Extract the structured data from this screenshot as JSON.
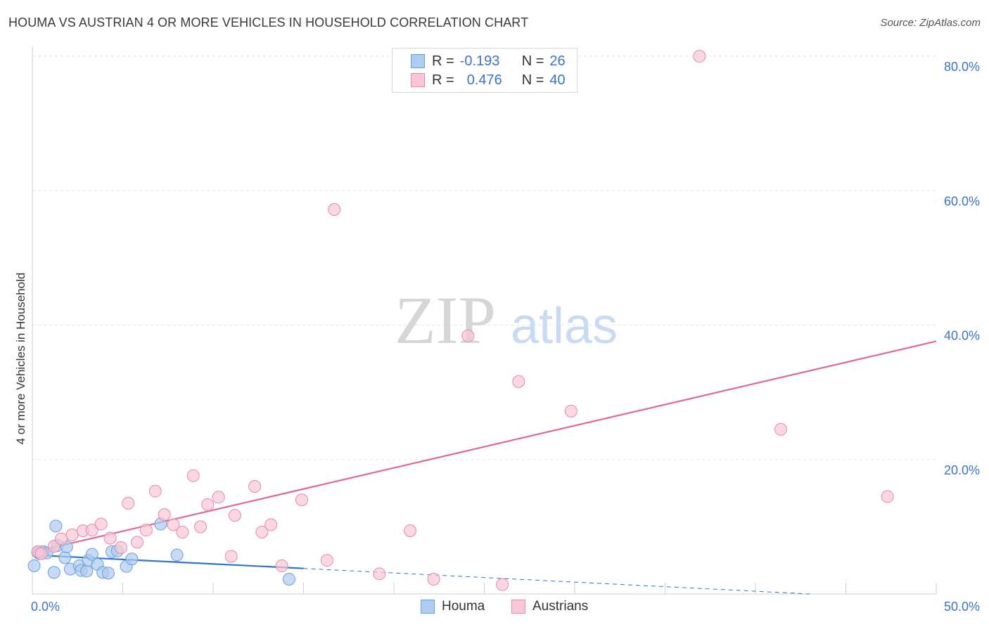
{
  "title": "HOUMA VS AUSTRIAN 4 OR MORE VEHICLES IN HOUSEHOLD CORRELATION CHART",
  "source": "Source: ZipAtlas.com",
  "watermark": {
    "zip": "ZIP",
    "atlas": "atlas"
  },
  "legend": {
    "rows": [
      {
        "r_label": "R =",
        "r_value": "-0.193",
        "n_label": "N =",
        "n_value": "26",
        "color": "#aecbf0",
        "border": "#6a9fd8"
      },
      {
        "r_label": "R =",
        "r_value": "0.476",
        "n_label": "N =",
        "n_value": "40",
        "color": "#f9c6d5",
        "border": "#e68aa6"
      }
    ]
  },
  "bottom_legend": [
    {
      "label": "Houma",
      "color": "#aecbf0",
      "border": "#6a9fd8"
    },
    {
      "label": "Austrians",
      "color": "#f9c6d5",
      "border": "#e68aa6"
    }
  ],
  "chart_data": {
    "type": "scatter",
    "title": "HOUMA VS AUSTRIAN 4 OR MORE VEHICLES IN HOUSEHOLD CORRELATION CHART",
    "xlabel": "",
    "ylabel": "4 or more Vehicles in Household",
    "xlim": [
      0,
      50
    ],
    "ylim": [
      0,
      80
    ],
    "x_tick_labels": [
      "0.0%",
      "50.0%"
    ],
    "y_tick_labels": [
      "20.0%",
      "40.0%",
      "60.0%",
      "80.0%"
    ],
    "y_ticks": [
      20,
      40,
      60,
      80
    ],
    "grid": true,
    "series": [
      {
        "name": "Houma",
        "color": "#aecbf0",
        "stroke": "#6a9fd8",
        "line_color": "#2e74c9",
        "points": [
          [
            0.1,
            4.2
          ],
          [
            0.3,
            6.2
          ],
          [
            0.6,
            6.3
          ],
          [
            0.8,
            6.1
          ],
          [
            1.3,
            10.1
          ],
          [
            1.4,
            7.2
          ],
          [
            1.2,
            3.2
          ],
          [
            1.8,
            5.4
          ],
          [
            1.9,
            7.0
          ],
          [
            2.1,
            3.7
          ],
          [
            2.6,
            4.2
          ],
          [
            2.7,
            3.5
          ],
          [
            3.0,
            3.4
          ],
          [
            3.1,
            5.0
          ],
          [
            3.3,
            5.9
          ],
          [
            3.6,
            4.4
          ],
          [
            3.9,
            3.2
          ],
          [
            4.2,
            3.1
          ],
          [
            4.4,
            6.3
          ],
          [
            4.7,
            6.4
          ],
          [
            5.2,
            4.1
          ],
          [
            5.5,
            5.2
          ],
          [
            7.1,
            10.4
          ],
          [
            8.0,
            5.8
          ],
          [
            14.2,
            2.2
          ],
          [
            0.4,
            6.0
          ]
        ],
        "trend": {
          "x": [
            0,
            15
          ],
          "y": [
            5.8,
            3.8
          ]
        },
        "trend_dashed": {
          "x": [
            15,
            43
          ],
          "y": [
            3.8,
            0.0
          ]
        }
      },
      {
        "name": "Austrians",
        "color": "#f9c6d5",
        "stroke": "#e68aa6",
        "line_color": "#e06892",
        "points": [
          [
            0.3,
            6.3
          ],
          [
            0.5,
            6.0
          ],
          [
            1.2,
            7.1
          ],
          [
            1.6,
            8.2
          ],
          [
            2.2,
            8.8
          ],
          [
            2.8,
            9.4
          ],
          [
            3.3,
            9.5
          ],
          [
            3.8,
            10.4
          ],
          [
            4.3,
            8.3
          ],
          [
            4.9,
            6.9
          ],
          [
            5.3,
            13.5
          ],
          [
            5.8,
            7.7
          ],
          [
            6.3,
            9.5
          ],
          [
            6.8,
            15.3
          ],
          [
            7.3,
            11.8
          ],
          [
            7.8,
            10.3
          ],
          [
            8.3,
            9.2
          ],
          [
            8.9,
            17.6
          ],
          [
            9.3,
            10.0
          ],
          [
            9.7,
            13.3
          ],
          [
            10.3,
            14.4
          ],
          [
            11.0,
            5.6
          ],
          [
            11.2,
            11.7
          ],
          [
            12.3,
            16.0
          ],
          [
            12.7,
            9.2
          ],
          [
            13.2,
            10.3
          ],
          [
            13.8,
            4.2
          ],
          [
            14.9,
            14.0
          ],
          [
            16.3,
            5.0
          ],
          [
            16.7,
            57.2
          ],
          [
            19.2,
            3.0
          ],
          [
            20.9,
            9.4
          ],
          [
            22.2,
            2.2
          ],
          [
            24.1,
            38.4
          ],
          [
            26.0,
            1.4
          ],
          [
            26.9,
            31.6
          ],
          [
            29.8,
            27.2
          ],
          [
            36.9,
            80.0
          ],
          [
            41.4,
            24.5
          ],
          [
            47.3,
            14.5
          ]
        ],
        "trend": {
          "x": [
            0,
            50
          ],
          "y": [
            6.2,
            37.6
          ]
        }
      }
    ]
  }
}
